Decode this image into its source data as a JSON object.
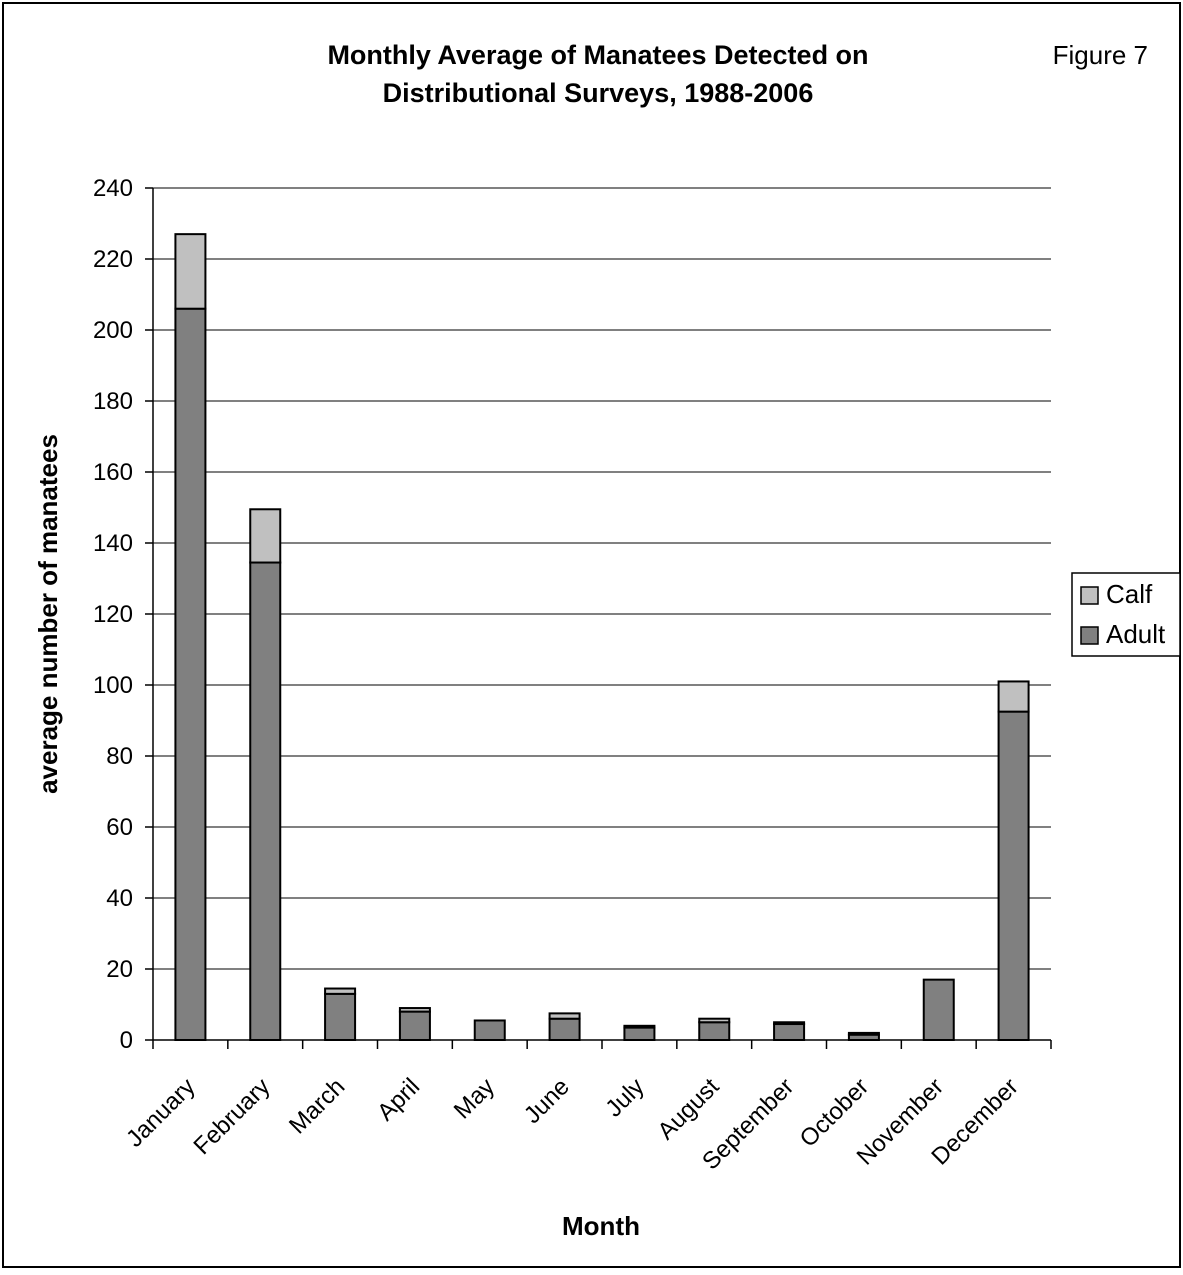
{
  "figure_label": "Figure 7",
  "chart_data": {
    "type": "bar",
    "stacked": true,
    "title": "Monthly Average of Manatees Detected on Distributional Surveys, 1988-2006",
    "title_lines": [
      "Monthly Average of Manatees Detected on",
      "Distributional Surveys, 1988-2006"
    ],
    "xlabel": "Month",
    "ylabel": "average number of manatees",
    "ylim": [
      0,
      240
    ],
    "yticks": [
      "0",
      "20",
      "40",
      "60",
      "80",
      "100",
      "120",
      "140",
      "160",
      "180",
      "200",
      "220",
      "240"
    ],
    "grid": "horizontal",
    "legend_position": "right",
    "categories": [
      "January",
      "February",
      "March",
      "April",
      "May",
      "June",
      "July",
      "August",
      "September",
      "October",
      "November",
      "December"
    ],
    "series": [
      {
        "name": "Adult",
        "color": "#808080",
        "values": [
          206,
          134.5,
          13,
          8,
          5.5,
          6,
          3.5,
          5,
          4.5,
          1.5,
          17,
          92.5
        ]
      },
      {
        "name": "Calf",
        "color": "#c0c0c0",
        "values": [
          21,
          15,
          1.5,
          1,
          0,
          1.5,
          0.5,
          1,
          0.5,
          0.5,
          0,
          8.5
        ]
      }
    ]
  }
}
